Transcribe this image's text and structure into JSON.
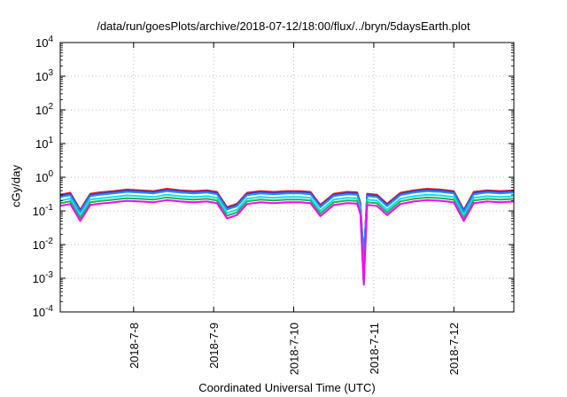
{
  "chart_data": {
    "type": "line",
    "title": "/data/run/goesPlots/archive/2018-07-12/18:00/flux/../bryn/5daysEarth.plot",
    "xlabel": "Coordinated Universal Time (UTC)",
    "ylabel": "cGy/day",
    "yscale": "log",
    "ylim": [
      0.0001,
      10000
    ],
    "xlim": [
      "2018-07-07 02:00",
      "2018-07-12 18:00"
    ],
    "grid": true,
    "y_ticks": [
      {
        "value": 0.0001,
        "base": "10",
        "exp": "-4"
      },
      {
        "value": 0.001,
        "base": "10",
        "exp": "-3"
      },
      {
        "value": 0.01,
        "base": "10",
        "exp": "-2"
      },
      {
        "value": 0.1,
        "base": "10",
        "exp": "-1"
      },
      {
        "value": 1,
        "base": "10",
        "exp": "0"
      },
      {
        "value": 10,
        "base": "10",
        "exp": "1"
      },
      {
        "value": 100,
        "base": "10",
        "exp": "2"
      },
      {
        "value": 1000,
        "base": "10",
        "exp": "3"
      },
      {
        "value": 10000,
        "base": "10",
        "exp": "4"
      }
    ],
    "x_ticks": [
      "2018-7-8",
      "2018-7-9",
      "2018-7-10",
      "2018-7-11",
      "2018-7-12"
    ],
    "x_tick_times": [
      "2018-07-08 00:00",
      "2018-07-09 00:00",
      "2018-07-10 00:00",
      "2018-07-11 00:00",
      "2018-07-12 00:00"
    ],
    "series": [
      {
        "color": "#e41a1c",
        "offset": 1.08
      },
      {
        "color": "#3a3ad8",
        "offset": 1.0
      },
      {
        "color": "#1e90ff",
        "offset": 0.92
      },
      {
        "color": "#00e5ee",
        "offset": 0.72
      },
      {
        "color": "#22b14c",
        "offset": 0.6
      },
      {
        "color": "#ff00ff",
        "offset": 0.5
      }
    ],
    "x": [
      "2018-07-07 02:00",
      "2018-07-07 05:00",
      "2018-07-07 08:00",
      "2018-07-07 11:00",
      "2018-07-07 14:00",
      "2018-07-07 18:00",
      "2018-07-07 22:00",
      "2018-07-08 02:00",
      "2018-07-08 06:00",
      "2018-07-08 10:00",
      "2018-07-08 14:00",
      "2018-07-08 18:00",
      "2018-07-08 22:00",
      "2018-07-09 01:00",
      "2018-07-09 04:00",
      "2018-07-09 07:00",
      "2018-07-09 10:00",
      "2018-07-09 14:00",
      "2018-07-09 18:00",
      "2018-07-09 22:00",
      "2018-07-10 02:00",
      "2018-07-10 05:00",
      "2018-07-10 08:00",
      "2018-07-10 12:00",
      "2018-07-10 16:00",
      "2018-07-10 19:00",
      "2018-07-10 20:00",
      "2018-07-10 21:00",
      "2018-07-10 22:00",
      "2018-07-11 01:00",
      "2018-07-11 04:00",
      "2018-07-11 08:00",
      "2018-07-11 12:00",
      "2018-07-11 16:00",
      "2018-07-11 20:00",
      "2018-07-12 00:00",
      "2018-07-12 03:00",
      "2018-07-12 06:00",
      "2018-07-12 10:00",
      "2018-07-12 14:00",
      "2018-07-12 18:00"
    ],
    "values_base": [
      0.28,
      0.32,
      0.1,
      0.3,
      0.33,
      0.36,
      0.4,
      0.38,
      0.36,
      0.42,
      0.38,
      0.36,
      0.38,
      0.34,
      0.12,
      0.15,
      0.32,
      0.36,
      0.34,
      0.36,
      0.36,
      0.34,
      0.14,
      0.3,
      0.34,
      0.33,
      0.16,
      0.00065,
      0.3,
      0.28,
      0.15,
      0.32,
      0.38,
      0.42,
      0.4,
      0.36,
      0.1,
      0.34,
      0.38,
      0.36,
      0.38
    ]
  }
}
